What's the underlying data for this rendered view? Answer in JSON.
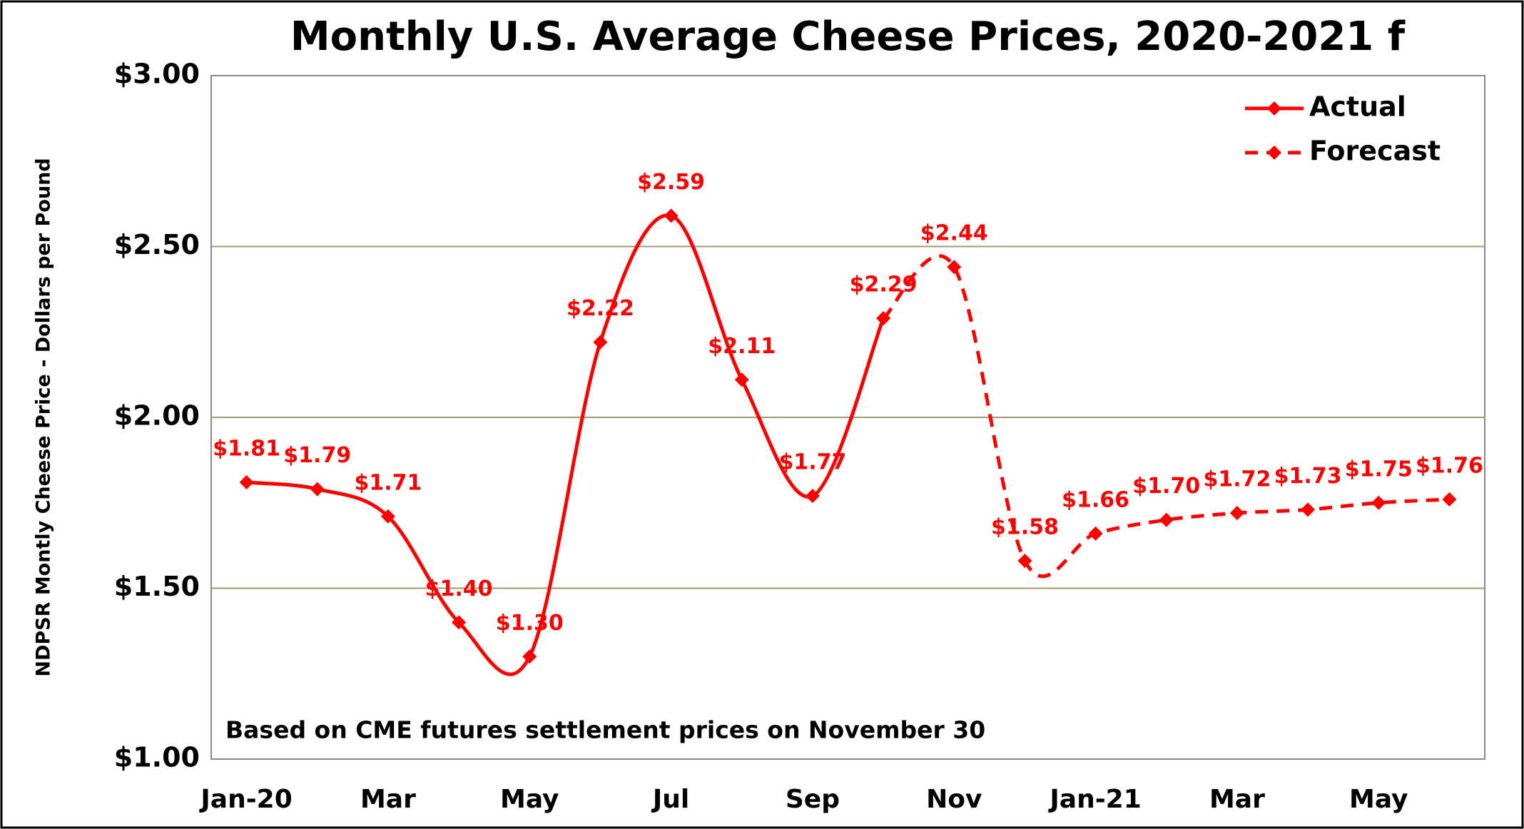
{
  "chart_data": {
    "type": "line",
    "title": "Monthly U.S. Average Cheese Prices, 2020-2021 f",
    "y_label": "NDPSR Montly Cheese Price - Dollars per Pound",
    "annotation": "Based on CME futures settlement prices on November 30",
    "categories": [
      "Jan-20",
      null,
      "Mar",
      null,
      "May",
      null,
      "Jul",
      null,
      "Sep",
      null,
      "Nov",
      null,
      "Jan-21",
      null,
      "Mar",
      null,
      "May",
      null
    ],
    "series": [
      {
        "name": "Actual",
        "color": "#ff0000",
        "dashed": false,
        "values": [
          1.81,
          1.79,
          1.71,
          1.4,
          1.3,
          2.22,
          2.59,
          2.11,
          1.77,
          2.29,
          null,
          null,
          null,
          null,
          null,
          null,
          null,
          null
        ],
        "value_labels": [
          "$1.81",
          "$1.79",
          "$1.71",
          "$1.40",
          "$1.30",
          "$2.22",
          "$2.59",
          "$2.11",
          "$1.77",
          "$2.29",
          null,
          null,
          null,
          null,
          null,
          null,
          null,
          null
        ]
      },
      {
        "name": "Forecast",
        "color": "#ff0000",
        "dashed": true,
        "values": [
          null,
          null,
          null,
          null,
          null,
          null,
          null,
          null,
          null,
          2.29,
          2.44,
          1.58,
          1.66,
          1.7,
          1.72,
          1.73,
          1.75,
          1.76
        ],
        "value_labels": [
          null,
          null,
          null,
          null,
          null,
          null,
          null,
          null,
          null,
          null,
          "$2.44",
          "$1.58",
          "$1.66",
          "$1.70",
          "$1.72",
          "$1.73",
          "$1.75",
          "$1.76"
        ]
      }
    ],
    "ylim": [
      1,
      3
    ],
    "yticks": [
      {
        "value": 1,
        "label": "$1.00"
      },
      {
        "value": 1.5,
        "label": "$1.50"
      },
      {
        "value": 2,
        "label": "$2.00"
      },
      {
        "value": 2.5,
        "label": "$2.50"
      },
      {
        "value": 3,
        "label": "$3.00"
      }
    ],
    "grid": true,
    "legend": "upper right"
  }
}
